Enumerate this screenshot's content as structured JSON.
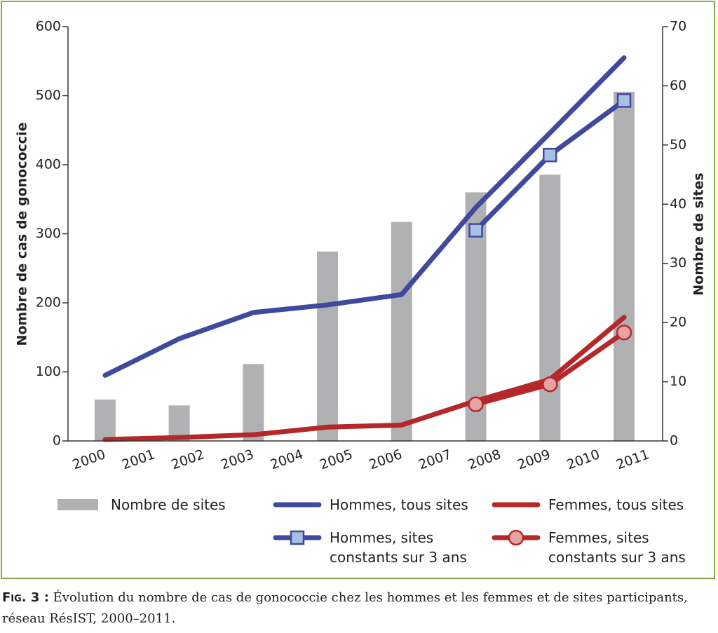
{
  "chart_data": {
    "type": "combo",
    "x": [
      2000,
      2001.5,
      2003,
      2004.5,
      2006,
      2007.5,
      2009,
      2010.5
    ],
    "xlim": [
      1999.25,
      2011.28
    ],
    "xticks": [
      2000,
      2001,
      2002,
      2003,
      2004,
      2005,
      2006,
      2007,
      2008,
      2009,
      2010,
      2011
    ],
    "ylabel": "Nombre de cas de gonococcie",
    "ylim": [
      0,
      600
    ],
    "yticks": [
      0,
      100,
      200,
      300,
      400,
      500,
      600
    ],
    "y2label": "Nombre de sites",
    "y2lim": [
      0,
      70
    ],
    "y2ticks": [
      0,
      10,
      20,
      30,
      40,
      50,
      60,
      70
    ],
    "series": [
      {
        "name": "Nombre de sites",
        "type": "bar",
        "axis": "y2",
        "color": "#b1b1b3",
        "values": [
          7,
          6,
          13,
          32,
          37,
          42,
          45,
          59
        ]
      },
      {
        "name": "Hommes, tous sites",
        "type": "line",
        "color": "#3f4a9e",
        "values": [
          95,
          148,
          186,
          197,
          212,
          338,
          446,
          555
        ]
      },
      {
        "name": "Femmes, tous sites",
        "type": "line",
        "color": "#b5282a",
        "values": [
          2,
          5,
          9,
          20,
          23,
          58,
          89,
          179
        ]
      },
      {
        "name": "Hommes, sites constants sur 3 ans",
        "type": "line",
        "marker": "square",
        "marker_color": "#a8c0e6",
        "color": "#3f4a9e",
        "values": [
          null,
          null,
          null,
          null,
          null,
          305,
          414,
          493
        ]
      },
      {
        "name": "Femmes, sites constants sur 3 ans",
        "type": "line",
        "marker": "circle",
        "marker_color": "#e5a3a3",
        "color": "#b5282a",
        "values": [
          null,
          null,
          null,
          null,
          null,
          53,
          82,
          157
        ]
      }
    ]
  },
  "caption": {
    "label": "Fig. 3 :",
    "text": "Évolution du nombre de cas de gonococcie chez les hommes et les femmes et de sites participants, réseau RésIST, 2000–2011."
  }
}
